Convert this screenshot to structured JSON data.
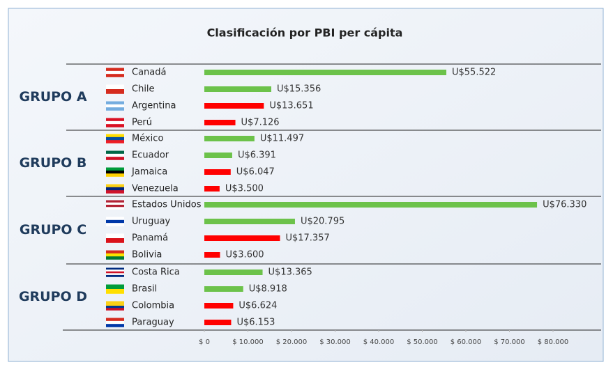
{
  "chart_data": {
    "type": "bar",
    "orientation": "horizontal",
    "title": "Clasificación por PBI per cápita",
    "groups": [
      {
        "name": "GRUPO A",
        "categories": [
          "Canadá",
          "Chile",
          "Argentina",
          "Perú"
        ],
        "values": [
          55522,
          15356,
          13651,
          7126
        ],
        "value_labels": [
          "U$55.522",
          "U$15.356",
          "U$13.651",
          "U$7.126"
        ],
        "colors": [
          "#6cc24a",
          "#6cc24a",
          "#ff0000",
          "#ff0000"
        ]
      },
      {
        "name": "GRUPO B",
        "categories": [
          "México",
          "Ecuador",
          "Jamaica",
          "Venezuela"
        ],
        "values": [
          11497,
          6391,
          6047,
          3500
        ],
        "value_labels": [
          "U$11.497",
          "U$6.391",
          "U$6.047",
          "U$3.500"
        ],
        "colors": [
          "#6cc24a",
          "#6cc24a",
          "#ff0000",
          "#ff0000"
        ]
      },
      {
        "name": "GRUPO C",
        "categories": [
          "Estados Unidos",
          "Uruguay",
          "Panamá",
          "Bolivia"
        ],
        "values": [
          76330,
          20795,
          17357,
          3600
        ],
        "value_labels": [
          "U$76.330",
          "U$20.795",
          "U$17.357",
          "U$3.600"
        ],
        "colors": [
          "#6cc24a",
          "#6cc24a",
          "#ff0000",
          "#ff0000"
        ]
      },
      {
        "name": "GRUPO D",
        "categories": [
          "Costa Rica",
          "Brasil",
          "Colombia",
          "Paraguay"
        ],
        "values": [
          13365,
          8918,
          6624,
          6153
        ],
        "value_labels": [
          "U$13.365",
          "U$8.918",
          "U$6.624",
          "U$6.153"
        ],
        "colors": [
          "#6cc24a",
          "#6cc24a",
          "#ff0000",
          "#ff0000"
        ]
      }
    ],
    "xlim": [
      0,
      80000
    ],
    "xticks": [
      {
        "value": 0,
        "label": "$ 0"
      },
      {
        "value": 10000,
        "label": "$ 10.000"
      },
      {
        "value": 20000,
        "label": "$ 20.000"
      },
      {
        "value": 30000,
        "label": "$ 30.000"
      },
      {
        "value": 40000,
        "label": "$ 40.000"
      },
      {
        "value": 50000,
        "label": "$ 50.000"
      },
      {
        "value": 60000,
        "label": "$ 60.000"
      },
      {
        "value": 70000,
        "label": "$ 70.000"
      },
      {
        "value": 80000,
        "label": "$ 80.000"
      }
    ]
  }
}
